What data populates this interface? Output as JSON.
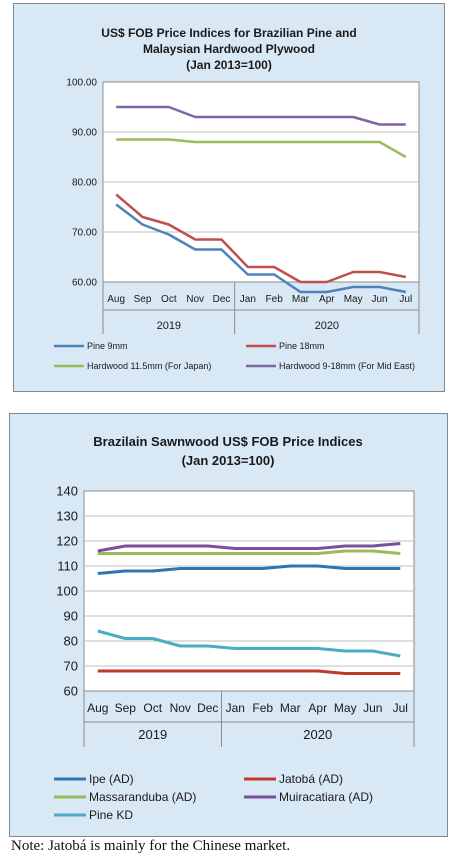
{
  "chart_data": [
    {
      "type": "line",
      "title": [
        "US$ FOB Price Indices for Brazilian Pine and",
        "Malaysian Hardwood Plywood",
        "(Jan 2013=100)"
      ],
      "y_tick_labels": [
        "100.00",
        "90.00",
        "80.00",
        "70.00",
        "60.00"
      ],
      "ylim": [
        60,
        100
      ],
      "categories": [
        "Aug",
        "Sep",
        "Oct",
        "Nov",
        "Dec",
        "Jan",
        "Feb",
        "Mar",
        "Apr",
        "May",
        "Jun",
        "Jul"
      ],
      "year_groups": [
        {
          "label": "2019",
          "count": 5
        },
        {
          "label": "2020",
          "count": 7
        }
      ],
      "grid": "horizontal",
      "legend_position": "bottom",
      "series": [
        {
          "name": "Pine 9mm",
          "color": "#4f81bd",
          "values": [
            75.5,
            71.5,
            69.5,
            66.5,
            66.5,
            61.5,
            61.5,
            58,
            58,
            59,
            59,
            58
          ]
        },
        {
          "name": "Pine 18mm",
          "color": "#c0504d",
          "values": [
            77.5,
            73,
            71.5,
            68.5,
            68.5,
            63,
            63,
            60,
            60,
            62,
            62,
            61
          ]
        },
        {
          "name": "Hardwood 11.5mm (For Japan)",
          "color": "#9bbb59",
          "values": [
            88.5,
            88.5,
            88.5,
            88,
            88,
            88,
            88,
            88,
            88,
            88,
            88,
            85
          ]
        },
        {
          "name": "Hardwood 9-18mm (For Mid East)",
          "color": "#8064a2",
          "values": [
            95,
            95,
            95,
            93,
            93,
            93,
            93,
            93,
            93,
            93,
            91.5,
            91.5
          ]
        }
      ]
    },
    {
      "type": "line",
      "title": [
        "Brazilain Sawnwood US$ FOB Price Indices",
        "(Jan 2013=100)"
      ],
      "y_tick_labels": [
        "140",
        "130",
        "120",
        "110",
        "100",
        "90",
        "80",
        "70",
        "60"
      ],
      "ylim": [
        60,
        140
      ],
      "categories": [
        "Aug",
        "Sep",
        "Oct",
        "Nov",
        "Dec",
        "Jan",
        "Feb",
        "Mar",
        "Apr",
        "May",
        "Jun",
        "Jul"
      ],
      "year_groups": [
        {
          "label": "2019",
          "count": 5
        },
        {
          "label": "2020",
          "count": 7
        }
      ],
      "grid": "horizontal",
      "legend_position": "bottom",
      "series": [
        {
          "name": "Ipe (AD)",
          "color": "#2e75b6",
          "values": [
            107,
            108,
            108,
            109,
            109,
            109,
            109,
            110,
            110,
            109,
            109,
            109
          ]
        },
        {
          "name": "Jatobá (AD)",
          "color": "#c0392b",
          "values": [
            68,
            68,
            68,
            68,
            68,
            68,
            68,
            68,
            68,
            67,
            67,
            67
          ]
        },
        {
          "name": "Massaranduba (AD)",
          "color": "#9bbb59",
          "values": [
            115,
            115,
            115,
            115,
            115,
            115,
            115,
            115,
            115,
            116,
            116,
            115
          ]
        },
        {
          "name": "Muiracatiara (AD)",
          "color": "#7a4fa0",
          "values": [
            116,
            118,
            118,
            118,
            118,
            117,
            117,
            117,
            117,
            118,
            118,
            119
          ]
        },
        {
          "name": "Pine KD",
          "color": "#4bacc6",
          "values": [
            84,
            81,
            81,
            78,
            78,
            77,
            77,
            77,
            77,
            76,
            76,
            74
          ]
        }
      ]
    }
  ],
  "note": "Note: Jatobá is mainly for the Chinese market."
}
